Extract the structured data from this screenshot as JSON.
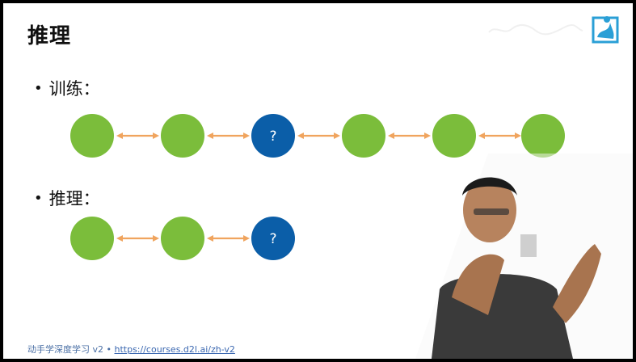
{
  "slide": {
    "title": "推理",
    "bullets": [
      {
        "dot": "•",
        "label": "训练："
      },
      {
        "dot": "•",
        "label": "推理："
      }
    ],
    "training_chain": [
      {
        "type": "green",
        "label": ""
      },
      {
        "type": "green",
        "label": ""
      },
      {
        "type": "blue",
        "label": "?"
      },
      {
        "type": "green",
        "label": ""
      },
      {
        "type": "green",
        "label": ""
      },
      {
        "type": "green",
        "label": ""
      }
    ],
    "inference_chain": [
      {
        "type": "green",
        "label": ""
      },
      {
        "type": "green",
        "label": ""
      },
      {
        "type": "blue",
        "label": "?"
      }
    ],
    "footer": {
      "course": "动手学深度学习 v2 •",
      "url": "https://courses.d2l.ai/zh-v2"
    }
  },
  "colors": {
    "node_green": "#7bbd3b",
    "node_blue": "#0b5ea8",
    "arrow": "#f0a45e"
  },
  "icons": [
    "d2l-logo-icon",
    "presenter-video"
  ]
}
